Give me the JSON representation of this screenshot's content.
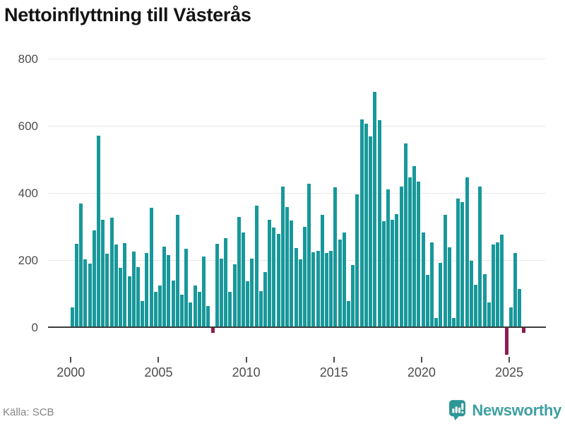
{
  "header": {
    "title": "Nettoinflyttning till Västerås"
  },
  "footer": {
    "source": "Källa: SCB",
    "brand": "Newsworthy"
  },
  "colors": {
    "bar_positive": "#18989A",
    "bar_negative": "#8E1D52",
    "gridline": "#e7e7e7",
    "zero_axis": "#3c3c3c",
    "tick_label": "#4d4d4d",
    "title_text": "#141414",
    "source_text": "#848484",
    "brand_teal": "#3FA0A1"
  },
  "chart_data": {
    "type": "bar",
    "title": "Nettoinflyttning till Västerås",
    "xlabel": "",
    "ylabel": "",
    "grid": true,
    "legend": "none",
    "ylim": [
      -100,
      800
    ],
    "y_ticks": [
      0,
      200,
      400,
      600,
      800
    ],
    "x_tick_years": [
      2000,
      2005,
      2010,
      2015,
      2020,
      2025
    ],
    "frequency": "quarterly",
    "start": "2000Q1",
    "end": "2025Q4",
    "series": [
      {
        "name": "Nettoinflyttning",
        "values": [
          60,
          249,
          370,
          204,
          191,
          289,
          572,
          321,
          219,
          328,
          247,
          177,
          251,
          152,
          226,
          180,
          79,
          222,
          357,
          107,
          126,
          240,
          215,
          140,
          335,
          98,
          234,
          75,
          124,
          105,
          212,
          63,
          -15,
          249,
          205,
          267,
          107,
          188,
          330,
          282,
          137,
          205,
          363,
          109,
          165,
          321,
          298,
          279,
          421,
          358,
          319,
          237,
          202,
          300,
          428,
          223,
          228,
          335,
          222,
          229,
          418,
          261,
          282,
          79,
          186,
          397,
          621,
          608,
          570,
          702,
          618,
          317,
          412,
          321,
          338,
          419,
          549,
          447,
          482,
          434,
          283,
          157,
          253,
          27,
          192,
          335,
          239,
          27,
          384,
          373,
          448,
          198,
          128,
          421,
          159,
          75,
          247,
          253,
          277,
          -80,
          60,
          221,
          114,
          -15
        ]
      }
    ]
  }
}
